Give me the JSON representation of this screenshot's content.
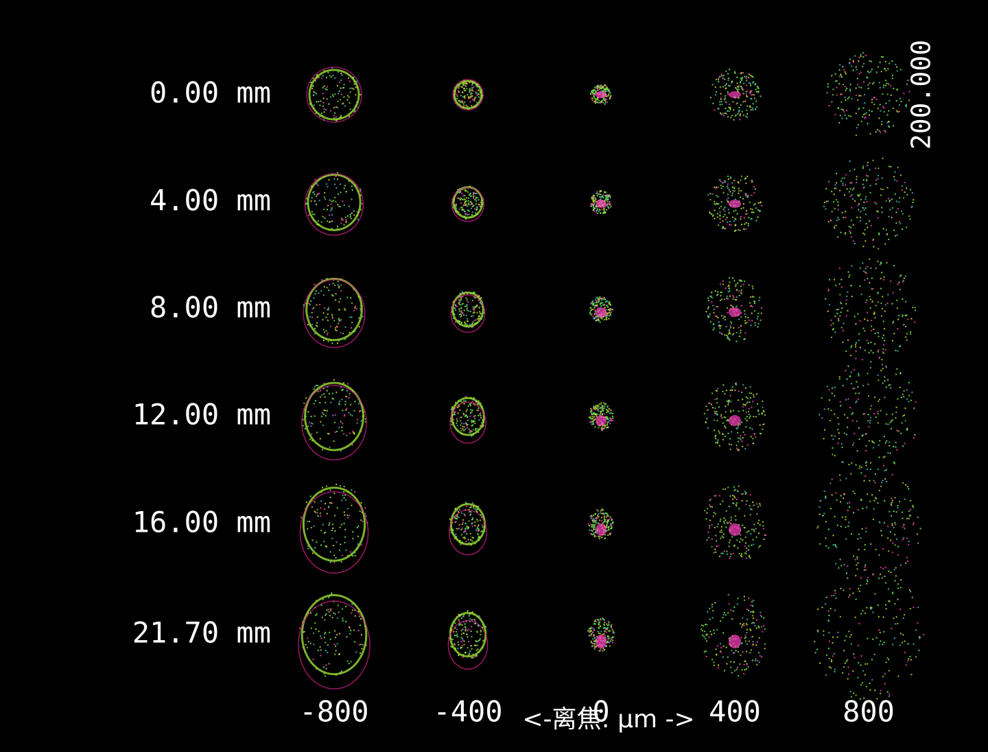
{
  "fields": [
    "0.00 mm",
    "4.00 mm",
    "8.00 mm",
    "12.00 mm",
    "16.00 mm",
    "21.70 mm"
  ],
  "defocus": [
    "-800",
    "-400",
    "0",
    "400",
    "800"
  ],
  "scale_label": "200.000",
  "axis_label": "<-离焦: µm ->"
}
